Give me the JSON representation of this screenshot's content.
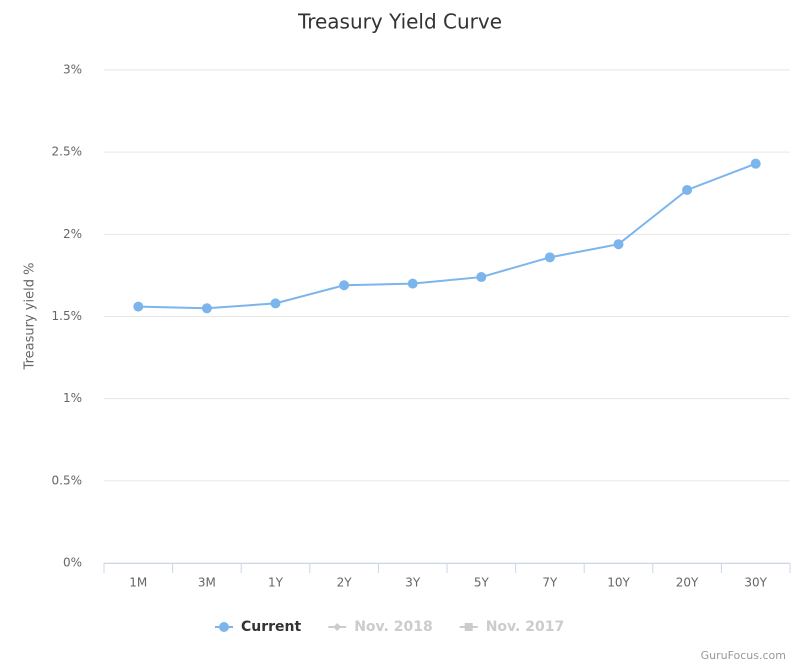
{
  "chart_data": {
    "type": "line",
    "title": "Treasury Yield Curve",
    "y_axis_label": "Treasury yield %",
    "categories": [
      "1M",
      "3M",
      "1Y",
      "2Y",
      "3Y",
      "5Y",
      "7Y",
      "10Y",
      "20Y",
      "30Y"
    ],
    "series": [
      {
        "name": "Current",
        "color": "#7cb5ec",
        "marker": "circle",
        "visible": true,
        "values": [
          1.56,
          1.55,
          1.58,
          1.69,
          1.7,
          1.74,
          1.86,
          1.94,
          2.27,
          2.43
        ]
      },
      {
        "name": "Nov. 2018",
        "color": "#cccccc",
        "marker": "diamond",
        "visible": false,
        "values": [
          null,
          null,
          null,
          null,
          null,
          null,
          null,
          null,
          null,
          null
        ]
      },
      {
        "name": "Nov. 2017",
        "color": "#cccccc",
        "marker": "square",
        "visible": false,
        "values": [
          null,
          null,
          null,
          null,
          null,
          null,
          null,
          null,
          null,
          null
        ]
      }
    ],
    "ylim": [
      0,
      3
    ],
    "yticks": [
      {
        "value": 0,
        "label": "0%"
      },
      {
        "value": 0.5,
        "label": "0.5%"
      },
      {
        "value": 1,
        "label": "1%"
      },
      {
        "value": 1.5,
        "label": "1.5%"
      },
      {
        "value": 2,
        "label": "2%"
      },
      {
        "value": 2.5,
        "label": "2.5%"
      },
      {
        "value": 3,
        "label": "3%"
      }
    ],
    "grid": true,
    "legend": "bottom",
    "credit": "GuruFocus.com"
  }
}
